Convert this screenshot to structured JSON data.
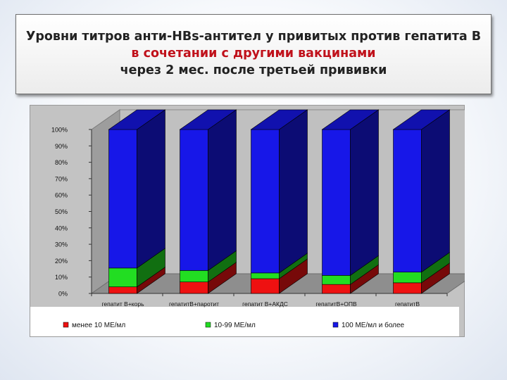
{
  "title": {
    "line1": "Уровни титров анти-HBs-антител у привитых против гепатита В",
    "line2": "в сочетании с другими вакцинами",
    "line3": "через 2 мес. после третьей прививки",
    "highlight_color": "#c0111b"
  },
  "chart_data": {
    "type": "bar",
    "stacked": true,
    "three_d": true,
    "categories": [
      "гепатит В+корь",
      "гепатитВ+паротит",
      "гепатит В+АКДС",
      "гепатитВ+ОПВ",
      "гепатитВ"
    ],
    "y_ticks": [
      "0%",
      "10%",
      "20%",
      "30%",
      "40%",
      "50%",
      "60%",
      "70%",
      "80%",
      "90%",
      "100%"
    ],
    "ylim": [
      0,
      100
    ],
    "series": [
      {
        "name": "менее 10 МЕ/мл",
        "color": "#ee1111",
        "values": [
          4,
          7,
          9,
          5.5,
          6.5
        ]
      },
      {
        "name": "10-99 МЕ/мл",
        "color": "#22dd22",
        "values": [
          11.5,
          7,
          3.5,
          5.5,
          6.5
        ]
      },
      {
        "name": "100 МЕ/мл и более",
        "color": "#1717e8",
        "values": [
          84.5,
          86,
          87.5,
          89,
          87
        ]
      }
    ],
    "legend_position": "bottom",
    "grid": false
  }
}
